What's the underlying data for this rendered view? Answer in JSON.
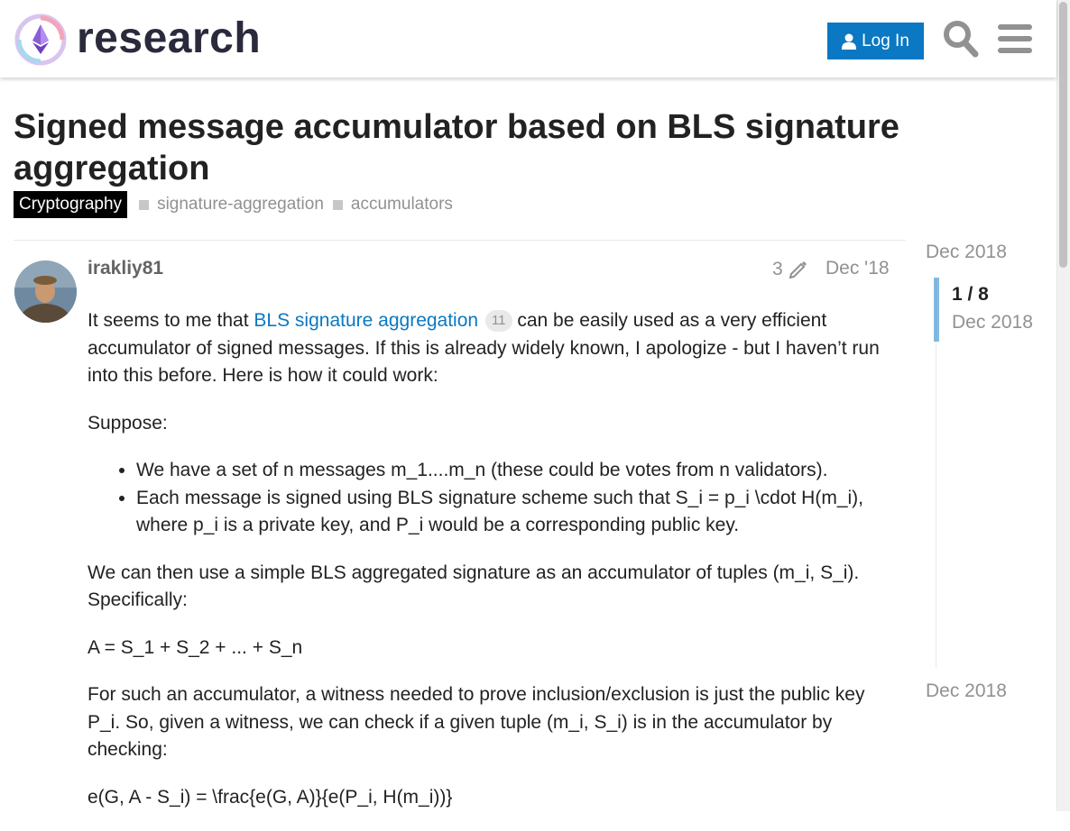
{
  "header": {
    "brand": "research",
    "login_label": "Log In"
  },
  "topic": {
    "title": "Signed message accumulator based on BLS signature aggregation",
    "category": "Cryptography",
    "tags": [
      "signature-aggregation",
      "accumulators"
    ]
  },
  "post": {
    "username": "irakliy81",
    "edit_count": "3",
    "date": "Dec '18",
    "p1_before": "It seems to me that ",
    "p1_link": "BLS signature aggregation",
    "p1_link_clicks": "11",
    "p1_after": " can be easily used as a very efficient accumulator of signed messages. If this is already widely known, I apologize - but I haven’t run into this before. Here is how it could work:",
    "p2": "Suppose:",
    "bullets": [
      "We have a set of n messages m_1....m_n (these could be votes from n validators).",
      "Each message is signed using BLS signature scheme such that S_i = p_i \\cdot H(m_i), where p_i is a private key, and P_i would be a corresponding public key."
    ],
    "p3": "We can then use a simple BLS aggregated signature as an accumulator of tuples (m_i, S_i). Specifically:",
    "p4": "A = S_1 + S_2 + ... + S_n",
    "p5": "For such an accumulator, a witness needed to prove inclusion/exclusion is just the public key P_i. So, given a witness, we can check if a given tuple (m_i, S_i) is in the accumulator by checking:",
    "p6": "e(G, A - S_i) = \\frac{e(G, A)}{e(P_i, H(m_i))}"
  },
  "timeline": {
    "start_date": "Dec 2018",
    "position": "1 / 8",
    "current_date": "Dec 2018",
    "end_date": "Dec 2018"
  },
  "colors": {
    "accent": "#0a78c2",
    "muted": "#919191",
    "category_bg": "#000000"
  },
  "icons": [
    "ethereum-logo-icon",
    "user-icon",
    "search-icon",
    "hamburger-menu-icon",
    "pencil-icon"
  ]
}
